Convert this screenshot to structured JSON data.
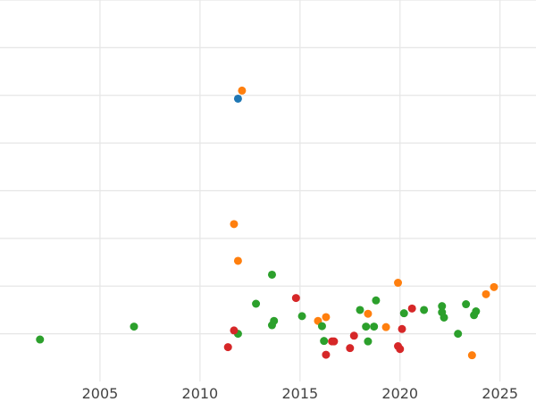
{
  "chart_data": {
    "type": "scatter",
    "title": "",
    "xlabel": "",
    "ylabel": "",
    "xlim": [
      2000.0,
      2026.8
    ],
    "ylim": [
      0,
      8
    ],
    "grid": true,
    "x_ticks": [
      2005,
      2010,
      2015,
      2020,
      2025
    ],
    "x_tick_labels": [
      "2005",
      "2010",
      "2015",
      "2020",
      "2025"
    ],
    "y_ticks": [
      1,
      2,
      3,
      4,
      5,
      6,
      7,
      8
    ],
    "colors": {
      "blue": "#1f77b4",
      "orange": "#ff7f0e",
      "green": "#2ca02c",
      "red": "#d62728"
    },
    "series": [
      {
        "color": "#1f77b4",
        "points": [
          [
            2011.9,
            5.93
          ]
        ]
      },
      {
        "color": "#ff7f0e",
        "points": [
          [
            2012.1,
            6.1
          ],
          [
            2011.7,
            3.3
          ],
          [
            2011.9,
            2.53
          ],
          [
            2019.9,
            2.07
          ],
          [
            2015.9,
            1.27
          ],
          [
            2016.3,
            1.35
          ],
          [
            2018.4,
            1.42
          ],
          [
            2019.3,
            1.14
          ],
          [
            2023.6,
            0.55
          ],
          [
            2024.3,
            1.83
          ],
          [
            2024.7,
            1.98
          ]
        ]
      },
      {
        "color": "#2ca02c",
        "points": [
          [
            2002.0,
            0.88
          ],
          [
            2006.7,
            1.15
          ],
          [
            2011.9,
            1.0
          ],
          [
            2012.8,
            1.63
          ],
          [
            2013.6,
            2.24
          ],
          [
            2013.6,
            1.18
          ],
          [
            2013.7,
            1.27
          ],
          [
            2015.1,
            1.37
          ],
          [
            2016.1,
            1.16
          ],
          [
            2016.2,
            0.85
          ],
          [
            2018.0,
            1.5
          ],
          [
            2018.3,
            1.15
          ],
          [
            2018.4,
            0.84
          ],
          [
            2018.7,
            1.15
          ],
          [
            2018.8,
            1.7
          ],
          [
            2020.2,
            1.43
          ],
          [
            2021.2,
            1.5
          ],
          [
            2022.1,
            1.45
          ],
          [
            2022.1,
            1.58
          ],
          [
            2022.2,
            1.34
          ],
          [
            2022.9,
            1.0
          ],
          [
            2023.3,
            1.62
          ],
          [
            2023.7,
            1.39
          ],
          [
            2023.8,
            1.47
          ]
        ]
      },
      {
        "color": "#d62728",
        "points": [
          [
            2011.4,
            0.72
          ],
          [
            2011.7,
            1.07
          ],
          [
            2014.8,
            1.75
          ],
          [
            2016.3,
            0.56
          ],
          [
            2016.6,
            0.84
          ],
          [
            2016.7,
            0.84
          ],
          [
            2017.5,
            0.7
          ],
          [
            2017.7,
            0.96
          ],
          [
            2019.9,
            0.74
          ],
          [
            2020.0,
            0.68
          ],
          [
            2020.1,
            1.1
          ],
          [
            2020.6,
            1.53
          ]
        ]
      }
    ]
  }
}
